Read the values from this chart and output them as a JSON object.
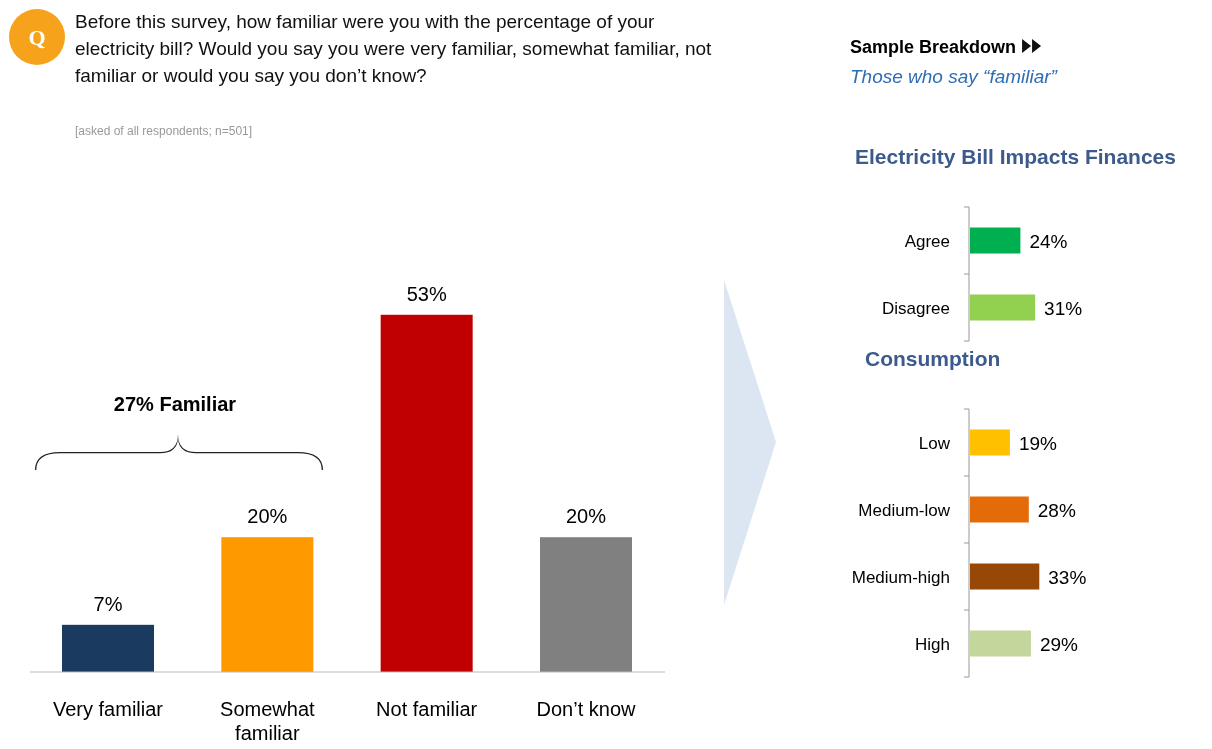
{
  "chart_data": [
    {
      "type": "bar",
      "title": "Before this survey, how familiar were you with the percentage of your electricity bill? Would you say you were very familiar, somewhat familiar, not familiar or would you say you don’t know?",
      "subtitle": "[asked of all respondents; n=501]",
      "categories": [
        "Very familiar",
        "Somewhat familiar",
        "Not familiar",
        "Don’t know"
      ],
      "values": [
        7,
        20,
        53,
        20
      ],
      "value_labels": [
        "7%",
        "20%",
        "53%",
        "20%"
      ],
      "colors": [
        "#1b3a5f",
        "#ff9900",
        "#c00000",
        "#808080"
      ],
      "annotations": [
        "Q",
        "27% Familiar"
      ]
    },
    {
      "type": "bar",
      "orientation": "horizontal",
      "title": "Electricity Bill Impacts Finances",
      "categories": [
        "Agree",
        "Disagree"
      ],
      "values": [
        24,
        31
      ],
      "value_labels": [
        "24%",
        "31%"
      ],
      "colors": [
        "#00b050",
        "#92d050"
      ],
      "annotations": [
        "Sample Breakdown",
        "Those who say “familiar”"
      ]
    },
    {
      "type": "bar",
      "orientation": "horizontal",
      "title": "Consumption",
      "categories": [
        "Low",
        "Medium-low",
        "Medium-high",
        "High"
      ],
      "values": [
        19,
        28,
        33,
        29
      ],
      "value_labels": [
        "19%",
        "28%",
        "33%",
        "29%"
      ],
      "colors": [
        "#ffc000",
        "#e36c09",
        "#974706",
        "#c3d69b"
      ]
    }
  ]
}
